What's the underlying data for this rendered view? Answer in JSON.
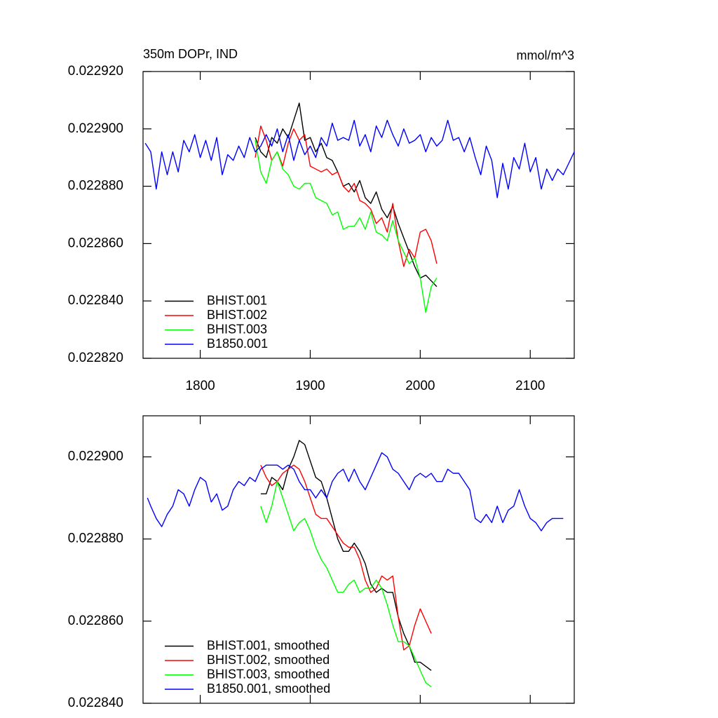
{
  "chart_data": [
    {
      "type": "line",
      "title": "350m DOPr, IND",
      "units": "mmol/m^3",
      "xlim": [
        1748,
        2140
      ],
      "xticks": [
        1800,
        1900,
        2000,
        2100
      ],
      "show_xtick_labels": true,
      "ylim": [
        0.02282,
        0.02292
      ],
      "yticks": [
        {
          "value": 0.02282,
          "label": "0.022820"
        },
        {
          "value": 0.02284,
          "label": "0.022840"
        },
        {
          "value": 0.02286,
          "label": "0.022860"
        },
        {
          "value": 0.02288,
          "label": "0.022880"
        },
        {
          "value": 0.0229,
          "label": "0.022900"
        },
        {
          "value": 0.02292,
          "label": "0.022920"
        }
      ],
      "legend": "lower left",
      "series": [
        {
          "name": "BHIST.001",
          "color": "#000000",
          "x": [
            1850,
            1855,
            1860,
            1865,
            1870,
            1875,
            1880,
            1885,
            1890,
            1895,
            1900,
            1905,
            1910,
            1915,
            1920,
            1925,
            1930,
            1935,
            1940,
            1945,
            1950,
            1955,
            1960,
            1965,
            1970,
            1975,
            1980,
            1985,
            1990,
            1995,
            2000,
            2005,
            2010,
            2015
          ],
          "values": [
            0.022897,
            0.022892,
            0.02289,
            0.022897,
            0.022895,
            0.0229,
            0.022897,
            0.022903,
            0.022909,
            0.022896,
            0.022897,
            0.022892,
            0.022895,
            0.02289,
            0.022889,
            0.022885,
            0.02288,
            0.022881,
            0.022878,
            0.022882,
            0.022876,
            0.022874,
            0.022878,
            0.022872,
            0.022869,
            0.022873,
            0.022867,
            0.022862,
            0.022857,
            0.022852,
            0.022848,
            0.022849,
            0.022847,
            0.022845
          ]
        },
        {
          "name": "BHIST.002",
          "color": "#ff0000",
          "x": [
            1850,
            1855,
            1860,
            1865,
            1870,
            1875,
            1880,
            1885,
            1890,
            1895,
            1900,
            1905,
            1910,
            1915,
            1920,
            1925,
            1930,
            1935,
            1940,
            1945,
            1950,
            1955,
            1960,
            1965,
            1970,
            1975,
            1980,
            1985,
            1990,
            1995,
            2000,
            2005,
            2010,
            2015
          ],
          "values": [
            0.02289,
            0.022901,
            0.022896,
            0.022889,
            0.022892,
            0.022887,
            0.022895,
            0.0229,
            0.022896,
            0.022898,
            0.022887,
            0.022886,
            0.022885,
            0.022886,
            0.022884,
            0.022885,
            0.02288,
            0.022878,
            0.022881,
            0.022875,
            0.022874,
            0.022872,
            0.022867,
            0.022869,
            0.022864,
            0.022874,
            0.022861,
            0.022852,
            0.022858,
            0.022855,
            0.022864,
            0.022865,
            0.022861,
            0.022853
          ]
        },
        {
          "name": "BHIST.003",
          "color": "#00ff00",
          "x": [
            1850,
            1855,
            1860,
            1865,
            1870,
            1875,
            1880,
            1885,
            1890,
            1895,
            1900,
            1905,
            1910,
            1915,
            1920,
            1925,
            1930,
            1935,
            1940,
            1945,
            1950,
            1955,
            1960,
            1965,
            1970,
            1975,
            1980,
            1985,
            1990,
            1995,
            2000,
            2005,
            2010,
            2015
          ],
          "values": [
            0.022896,
            0.022885,
            0.022881,
            0.022889,
            0.022892,
            0.022886,
            0.022884,
            0.02288,
            0.022879,
            0.022881,
            0.022881,
            0.022876,
            0.022875,
            0.022874,
            0.02287,
            0.022871,
            0.022865,
            0.022866,
            0.022866,
            0.022869,
            0.022865,
            0.022871,
            0.022864,
            0.022863,
            0.022861,
            0.022868,
            0.022861,
            0.022857,
            0.022853,
            0.022855,
            0.022848,
            0.022836,
            0.022845,
            0.022848
          ]
        },
        {
          "name": "B1850.001",
          "color": "#0000ff",
          "x": [
            1750,
            1755,
            1760,
            1765,
            1770,
            1775,
            1780,
            1785,
            1790,
            1795,
            1800,
            1805,
            1810,
            1815,
            1820,
            1825,
            1830,
            1835,
            1840,
            1845,
            1850,
            1855,
            1860,
            1865,
            1870,
            1875,
            1880,
            1885,
            1890,
            1895,
            1900,
            1905,
            1910,
            1915,
            1920,
            1925,
            1930,
            1935,
            1940,
            1945,
            1950,
            1955,
            1960,
            1965,
            1970,
            1975,
            1980,
            1985,
            1990,
            1995,
            2000,
            2005,
            2010,
            2015,
            2020,
            2025,
            2030,
            2035,
            2040,
            2045,
            2050,
            2055,
            2060,
            2065,
            2070,
            2075,
            2080,
            2085,
            2090,
            2095,
            2100,
            2105,
            2110,
            2115,
            2120,
            2125,
            2130,
            2135,
            2140
          ],
          "values": [
            0.022895,
            0.022892,
            0.022879,
            0.022892,
            0.022884,
            0.022892,
            0.022885,
            0.022896,
            0.022892,
            0.022898,
            0.02289,
            0.022896,
            0.022889,
            0.022897,
            0.022884,
            0.022891,
            0.022889,
            0.022894,
            0.02289,
            0.022897,
            0.022892,
            0.022894,
            0.022898,
            0.022894,
            0.0229,
            0.022892,
            0.022898,
            0.022889,
            0.022896,
            0.022891,
            0.022894,
            0.02289,
            0.022897,
            0.022894,
            0.022902,
            0.022896,
            0.022897,
            0.022896,
            0.022903,
            0.022894,
            0.022898,
            0.022892,
            0.022901,
            0.022897,
            0.022903,
            0.022898,
            0.022894,
            0.0229,
            0.022895,
            0.022896,
            0.022898,
            0.022892,
            0.022897,
            0.022894,
            0.022896,
            0.022903,
            0.022896,
            0.022897,
            0.022892,
            0.022897,
            0.02289,
            0.022884,
            0.022894,
            0.022889,
            0.022876,
            0.022888,
            0.022879,
            0.02289,
            0.022886,
            0.022895,
            0.022885,
            0.02289,
            0.022879,
            0.022886,
            0.022882,
            0.022886,
            0.022884,
            0.022888,
            0.022892
          ]
        }
      ]
    },
    {
      "type": "line",
      "xlim": [
        1748,
        2140
      ],
      "xticks": [
        1800,
        1900,
        2000,
        2100
      ],
      "show_xtick_labels": false,
      "ylim": [
        0.02284,
        0.02291
      ],
      "yticks": [
        {
          "value": 0.02284,
          "label": "0.022840"
        },
        {
          "value": 0.02286,
          "label": "0.022860"
        },
        {
          "value": 0.02288,
          "label": "0.022880"
        },
        {
          "value": 0.0229,
          "label": "0.022900"
        }
      ],
      "legend": "lower left",
      "series": [
        {
          "name": "BHIST.001, smoothed",
          "color": "#000000",
          "x": [
            1855,
            1860,
            1865,
            1870,
            1875,
            1880,
            1885,
            1890,
            1895,
            1900,
            1905,
            1910,
            1915,
            1920,
            1925,
            1930,
            1935,
            1940,
            1945,
            1950,
            1955,
            1960,
            1965,
            1970,
            1975,
            1980,
            1985,
            1990,
            1995,
            2000,
            2005,
            2010
          ],
          "values": [
            0.022891,
            0.022891,
            0.022895,
            0.022894,
            0.022892,
            0.022897,
            0.0229,
            0.022904,
            0.022903,
            0.022899,
            0.022895,
            0.022894,
            0.02289,
            0.022885,
            0.02288,
            0.022877,
            0.022877,
            0.022879,
            0.022877,
            0.022874,
            0.022869,
            0.022867,
            0.022868,
            0.022867,
            0.022867,
            0.022861,
            0.022857,
            0.022854,
            0.02285,
            0.02285,
            0.022849,
            0.022848
          ]
        },
        {
          "name": "BHIST.002, smoothed",
          "color": "#ff0000",
          "x": [
            1855,
            1860,
            1865,
            1870,
            1875,
            1880,
            1885,
            1890,
            1895,
            1900,
            1905,
            1910,
            1915,
            1920,
            1925,
            1930,
            1935,
            1940,
            1945,
            1950,
            1955,
            1960,
            1965,
            1970,
            1975,
            1980,
            1985,
            1990,
            1995,
            2000,
            2005,
            2010
          ],
          "values": [
            0.022898,
            0.022895,
            0.022893,
            0.022894,
            0.022896,
            0.022897,
            0.022898,
            0.022897,
            0.022894,
            0.02289,
            0.022886,
            0.022885,
            0.022885,
            0.022883,
            0.022881,
            0.022879,
            0.022878,
            0.022878,
            0.022875,
            0.02287,
            0.022867,
            0.022868,
            0.022871,
            0.02287,
            0.022871,
            0.022861,
            0.022853,
            0.022854,
            0.022859,
            0.022863,
            0.02286,
            0.022857
          ]
        },
        {
          "name": "BHIST.003, smoothed",
          "color": "#00ff00",
          "x": [
            1855,
            1860,
            1865,
            1870,
            1875,
            1880,
            1885,
            1890,
            1895,
            1900,
            1905,
            1910,
            1915,
            1920,
            1925,
            1930,
            1935,
            1940,
            1945,
            1950,
            1955,
            1960,
            1965,
            1970,
            1975,
            1980,
            1985,
            1990,
            1995,
            2000,
            2005,
            2010
          ],
          "values": [
            0.022888,
            0.022884,
            0.022888,
            0.022894,
            0.02289,
            0.022886,
            0.022882,
            0.022884,
            0.022885,
            0.022882,
            0.022878,
            0.022875,
            0.022873,
            0.02287,
            0.022867,
            0.022867,
            0.022869,
            0.02287,
            0.022867,
            0.022868,
            0.022868,
            0.02287,
            0.022868,
            0.022864,
            0.022859,
            0.022855,
            0.022855,
            0.022854,
            0.022851,
            0.022848,
            0.022845,
            0.022844
          ]
        },
        {
          "name": "B1850.001, smoothed",
          "color": "#0000ff",
          "x": [
            1752,
            1755,
            1760,
            1765,
            1770,
            1775,
            1780,
            1785,
            1790,
            1795,
            1800,
            1805,
            1810,
            1815,
            1820,
            1825,
            1830,
            1835,
            1840,
            1845,
            1850,
            1855,
            1860,
            1865,
            1870,
            1875,
            1880,
            1885,
            1890,
            1895,
            1900,
            1905,
            1910,
            1915,
            1920,
            1925,
            1930,
            1935,
            1940,
            1945,
            1950,
            1955,
            1960,
            1965,
            1970,
            1975,
            1980,
            1985,
            1990,
            1995,
            2000,
            2005,
            2010,
            2015,
            2020,
            2025,
            2030,
            2035,
            2040,
            2045,
            2050,
            2055,
            2060,
            2065,
            2070,
            2075,
            2080,
            2085,
            2090,
            2095,
            2100,
            2105,
            2110,
            2115,
            2120,
            2125,
            2130
          ],
          "values": [
            0.02289,
            0.022888,
            0.022885,
            0.022883,
            0.022886,
            0.022888,
            0.022892,
            0.022891,
            0.022888,
            0.022892,
            0.022895,
            0.022894,
            0.022889,
            0.022891,
            0.022887,
            0.022888,
            0.022892,
            0.022894,
            0.022893,
            0.022895,
            0.022894,
            0.022897,
            0.022898,
            0.022898,
            0.022898,
            0.022897,
            0.022898,
            0.022897,
            0.022894,
            0.022892,
            0.022892,
            0.02289,
            0.022892,
            0.02289,
            0.022894,
            0.022896,
            0.022897,
            0.022894,
            0.022897,
            0.022894,
            0.022892,
            0.022895,
            0.022898,
            0.022901,
            0.0229,
            0.022897,
            0.022896,
            0.022894,
            0.022892,
            0.022895,
            0.022896,
            0.022895,
            0.022896,
            0.022894,
            0.022894,
            0.022897,
            0.022896,
            0.022896,
            0.022894,
            0.022892,
            0.022885,
            0.022884,
            0.022886,
            0.022884,
            0.022888,
            0.022884,
            0.022887,
            0.022888,
            0.022892,
            0.022888,
            0.022885,
            0.022884,
            0.022882,
            0.022884,
            0.022885,
            0.022885,
            0.022885
          ]
        }
      ]
    }
  ]
}
